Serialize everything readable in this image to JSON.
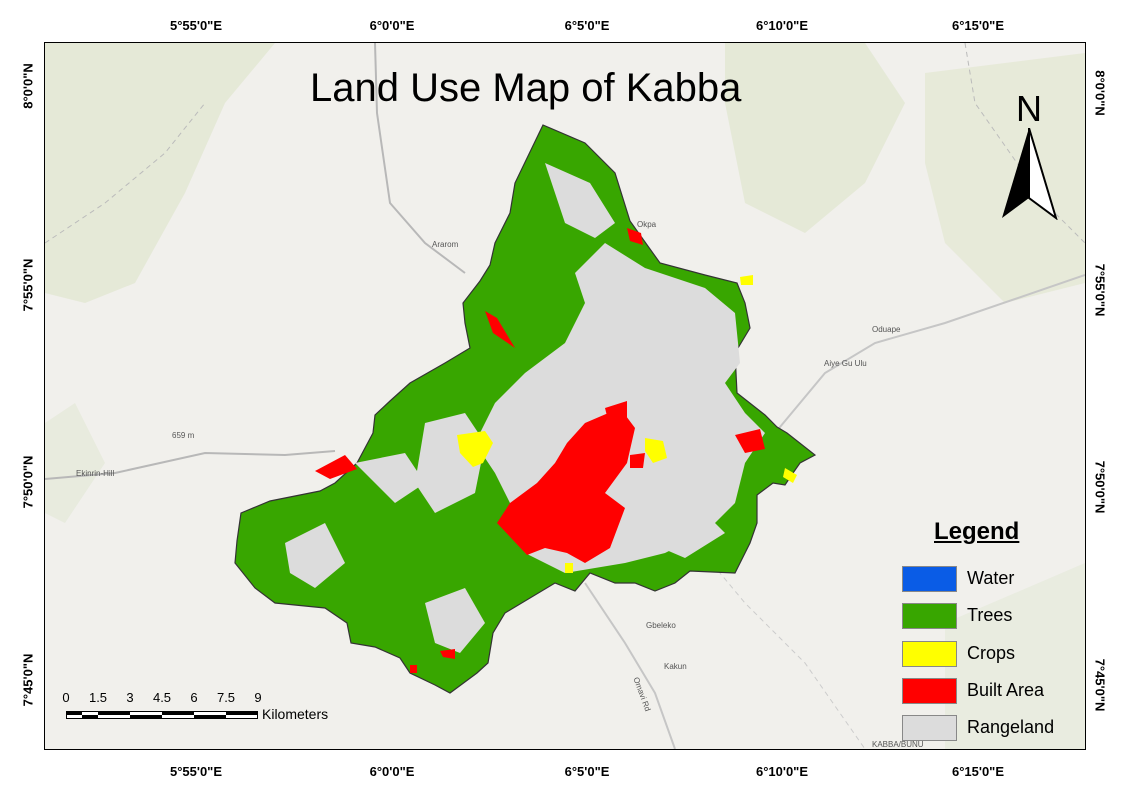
{
  "title": "Land Use Map of Kabba",
  "north_label": "N",
  "longitude_labels": [
    "5°55'0\"E",
    "6°0'0\"E",
    "6°5'0\"E",
    "6°10'0\"E",
    "6°15'0\"E"
  ],
  "latitude_labels": [
    "8°0'0\"N",
    "7°55'0\"N",
    "7°50'0\"N",
    "7°45'0\"N"
  ],
  "legend": {
    "title": "Legend",
    "items": [
      {
        "label": "Water",
        "color": "#0a5ce6"
      },
      {
        "label": "Trees",
        "color": "#38a600"
      },
      {
        "label": "Crops",
        "color": "#ffff00"
      },
      {
        "label": "Built Area",
        "color": "#ff0000"
      },
      {
        "label": "Rangeland",
        "color": "#dcdcdc"
      }
    ]
  },
  "scale_bar": {
    "ticks": [
      "0",
      "1.5",
      "3",
      "4.5",
      "6",
      "7.5",
      "9"
    ],
    "unit": "Kilometers"
  },
  "place_names": [
    "Ararom",
    "Okpa",
    "Oduape",
    "Aiye Gu Ulu",
    "Ekinrin-Hill",
    "Gbeleko",
    "Kakun",
    "Omavi Rd",
    "659 m",
    "KABBA/BUNU"
  ]
}
